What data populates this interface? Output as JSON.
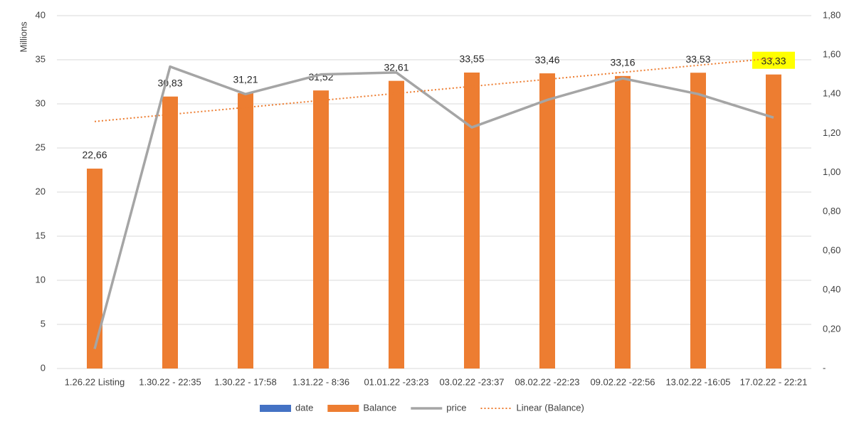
{
  "chart_data": {
    "type": "bar",
    "y_label": "Millions",
    "categories": [
      "1.26.22 Listing",
      "1.30.22 - 22:35",
      "1.30.22 - 17:58",
      "1.31.22 - 8:36",
      "01.01.22 -23:23",
      "03.02.22 -23:37",
      "08.02.22 -22:23",
      "09.02.22 -22:56",
      "13.02.22 -16:05",
      "17.02.22 - 22:21"
    ],
    "series": [
      {
        "name": "date",
        "type": "bar",
        "color": "#4472c4",
        "values": [
          null,
          null,
          null,
          null,
          null,
          null,
          null,
          null,
          null,
          null
        ]
      },
      {
        "name": "Balance",
        "type": "bar",
        "color": "#ed7d31",
        "values": [
          22.66,
          30.83,
          31.21,
          31.52,
          32.61,
          33.55,
          33.46,
          33.16,
          33.53,
          33.33
        ],
        "value_labels": [
          "22,66",
          "30,83",
          "31,21",
          "31,52",
          "32,61",
          "33,55",
          "33,46",
          "33,16",
          "33,53",
          "33,33"
        ]
      },
      {
        "name": "price",
        "type": "line",
        "axis": "y2",
        "color": "#a5a5a5",
        "values": [
          0.1,
          1.54,
          1.4,
          1.5,
          1.51,
          1.23,
          1.37,
          1.48,
          1.4,
          1.28
        ]
      },
      {
        "name": "Linear (Balance)",
        "type": "trendline",
        "of": "Balance",
        "color": "#ed7d31"
      }
    ],
    "ylim": [
      0,
      40
    ],
    "yticks": [
      0,
      5,
      10,
      15,
      20,
      25,
      30,
      35,
      40
    ],
    "y2lim": [
      0,
      1.8
    ],
    "y2ticks": [
      {
        "value": 0,
        "label": "-"
      },
      {
        "value": 0.2,
        "label": "0,20"
      },
      {
        "value": 0.4,
        "label": "0,40"
      },
      {
        "value": 0.6,
        "label": "0,60"
      },
      {
        "value": 0.8,
        "label": "0,80"
      },
      {
        "value": 1.0,
        "label": "1,00"
      },
      {
        "value": 1.2,
        "label": "1,20"
      },
      {
        "value": 1.4,
        "label": "1,40"
      },
      {
        "value": 1.6,
        "label": "1,60"
      },
      {
        "value": 1.8,
        "label": "1,80"
      }
    ],
    "grid": true,
    "legend": "bottom",
    "highlight": {
      "index": 9,
      "color": "#ffff00"
    }
  }
}
